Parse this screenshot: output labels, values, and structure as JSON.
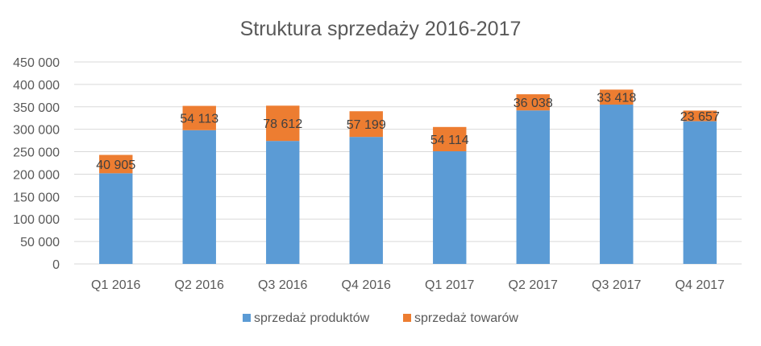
{
  "chart_data": {
    "type": "bar",
    "stacked": true,
    "title": "Struktura sprzedaży 2016-2017",
    "categories": [
      "Q1 2016",
      "Q2 2016",
      "Q3 2016",
      "Q4 2016",
      "Q1 2017",
      "Q2 2017",
      "Q3 2017",
      "Q4 2017"
    ],
    "series": [
      {
        "name": "sprzedaż produktów",
        "color": "#5B9BD5",
        "values": [
          202000,
          298000,
          274000,
          283000,
          251000,
          342000,
          355000,
          318000
        ]
      },
      {
        "name": "sprzedaż towarów",
        "color": "#ED7D31",
        "values": [
          40905,
          54113,
          78612,
          57199,
          54114,
          36038,
          33418,
          23657
        ],
        "data_labels": [
          "40 905",
          "54 113",
          "78 612",
          "57 199",
          "54 114",
          "36 038",
          "33 418",
          "23 657"
        ]
      }
    ],
    "ylim": [
      0,
      450000
    ],
    "y_ticks": [
      {
        "value": 0,
        "label": "0"
      },
      {
        "value": 50000,
        "label": "50 000"
      },
      {
        "value": 100000,
        "label": "100 000"
      },
      {
        "value": 150000,
        "label": "150 000"
      },
      {
        "value": 200000,
        "label": "200 000"
      },
      {
        "value": 250000,
        "label": "250 000"
      },
      {
        "value": 300000,
        "label": "300 000"
      },
      {
        "value": 350000,
        "label": "350 000"
      },
      {
        "value": 400000,
        "label": "400 000"
      },
      {
        "value": 450000,
        "label": "450 000"
      }
    ],
    "grid": true,
    "legend_position": "bottom",
    "gridline_color": "#D9D9D9",
    "text_color": "#595959"
  }
}
